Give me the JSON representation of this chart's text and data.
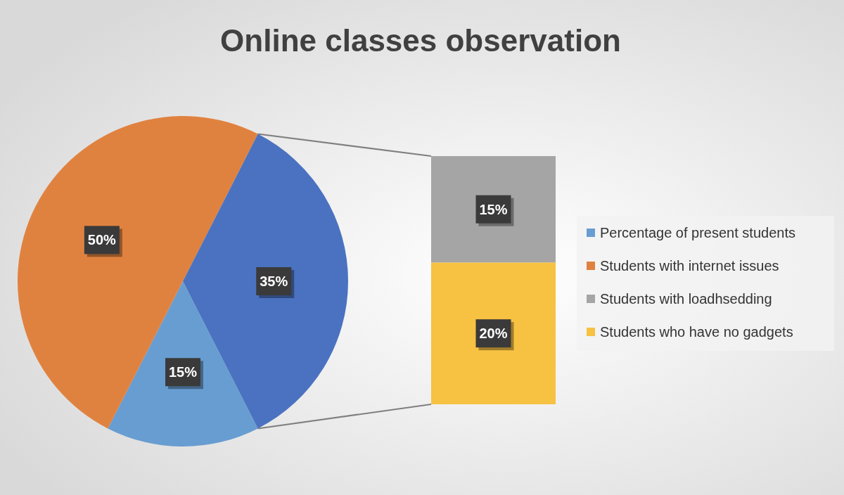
{
  "chart_data": [
    {
      "type": "pie",
      "title": "Online classes observation",
      "categories": [
        "Percentage of present students",
        "Students with internet issues",
        null
      ],
      "values": [
        15,
        50,
        35
      ],
      "colors": [
        "#689dd1",
        "#e0823f",
        "#4a72c0"
      ],
      "value_labels": [
        "15%",
        "50%",
        "35%"
      ],
      "legend": "right"
    },
    {
      "type": "bar",
      "stacked": true,
      "categories": [
        null
      ],
      "series": [
        {
          "name": "Students who have no gadgets",
          "color": "#f7c142",
          "values": [
            20
          ],
          "value_labels": [
            "20%"
          ]
        },
        {
          "name": "Students with loadhsedding",
          "color": "#a5a5a5",
          "values": [
            15
          ],
          "value_labels": [
            "15%"
          ]
        }
      ],
      "legend": "right"
    }
  ]
}
